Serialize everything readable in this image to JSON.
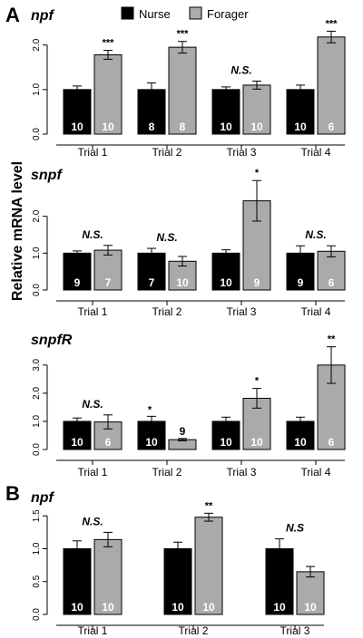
{
  "panels": {
    "a": "A",
    "b": "B"
  },
  "legend": {
    "nurse": "Nurse",
    "forager": "Forager"
  },
  "colors": {
    "nurse": "#000000",
    "forager": "#aaaaaa"
  },
  "ylabel": "Relative mRNA level",
  "chart_data": [
    {
      "type": "bar",
      "title": "npf",
      "categories": [
        "Trial 1",
        "Trial 2",
        "Trial 3",
        "Trial 4"
      ],
      "ylim": [
        0,
        2.4
      ],
      "yticks": [
        "0.0",
        "1.0",
        "2.0"
      ],
      "series": [
        {
          "name": "Nurse",
          "values": [
            1.0,
            1.0,
            1.0,
            1.0
          ],
          "err": [
            0.08,
            0.15,
            0.06,
            0.1
          ],
          "n": [
            "10",
            "8",
            "10",
            "10"
          ]
        },
        {
          "name": "Forager",
          "values": [
            1.78,
            1.95,
            1.1,
            2.18
          ],
          "err": [
            0.1,
            0.13,
            0.09,
            0.13
          ],
          "n": [
            "10",
            "8",
            "10",
            "6"
          ]
        }
      ],
      "significance": [
        "***",
        "***",
        "N.S.",
        "***"
      ]
    },
    {
      "type": "bar",
      "title": "snpf",
      "categories": [
        "Trial 1",
        "Trial 2",
        "Trial 3",
        "Trial 4"
      ],
      "ylim": [
        0,
        3.0
      ],
      "yticks": [
        "0.0",
        "1.0",
        "2.0"
      ],
      "series": [
        {
          "name": "Nurse",
          "values": [
            1.0,
            1.0,
            1.0,
            1.0
          ],
          "err": [
            0.06,
            0.13,
            0.09,
            0.2
          ],
          "n": [
            "9",
            "7",
            "10",
            "9"
          ]
        },
        {
          "name": "Forager",
          "values": [
            1.08,
            0.78,
            2.42,
            1.05
          ],
          "err": [
            0.13,
            0.13,
            0.55,
            0.15
          ],
          "n": [
            "7",
            "10",
            "9",
            "6"
          ]
        }
      ],
      "significance": [
        "N.S.",
        "N.S.",
        "*",
        "N.S."
      ]
    },
    {
      "type": "bar",
      "title": "snpfR",
      "categories": [
        "Trial 1",
        "Trial 2",
        "Trial 3",
        "Trial 4"
      ],
      "ylim": [
        0,
        3.8
      ],
      "yticks": [
        "0.0",
        "1.0",
        "2.0",
        "3.0"
      ],
      "series": [
        {
          "name": "Nurse",
          "values": [
            1.0,
            1.0,
            1.0,
            1.0
          ],
          "err": [
            0.12,
            0.18,
            0.15,
            0.15
          ],
          "n": [
            "10",
            "10",
            "10",
            "10"
          ]
        },
        {
          "name": "Forager",
          "values": [
            0.98,
            0.35,
            1.82,
            3.0
          ],
          "err": [
            0.25,
            0.04,
            0.35,
            0.65
          ],
          "n": [
            "6",
            "9",
            "10",
            "6"
          ]
        }
      ],
      "significance": [
        "N.S.",
        "*",
        "*",
        "**"
      ]
    },
    {
      "type": "bar",
      "title": "npf",
      "categories": [
        "Trial 1",
        "Trial 2",
        "Trial 3"
      ],
      "ylim": [
        0,
        1.6
      ],
      "yticks": [
        "0.0",
        "0.5",
        "1.0",
        "1.5"
      ],
      "series": [
        {
          "name": "Nurse",
          "values": [
            1.0,
            1.0,
            1.0
          ],
          "err": [
            0.12,
            0.1,
            0.15
          ],
          "n": [
            "10",
            "10",
            "10"
          ]
        },
        {
          "name": "Forager",
          "values": [
            1.14,
            1.48,
            0.65
          ],
          "err": [
            0.11,
            0.06,
            0.08
          ],
          "n": [
            "10",
            "10",
            "10"
          ]
        }
      ],
      "significance": [
        "N.S.",
        "**",
        "N.S"
      ]
    }
  ]
}
